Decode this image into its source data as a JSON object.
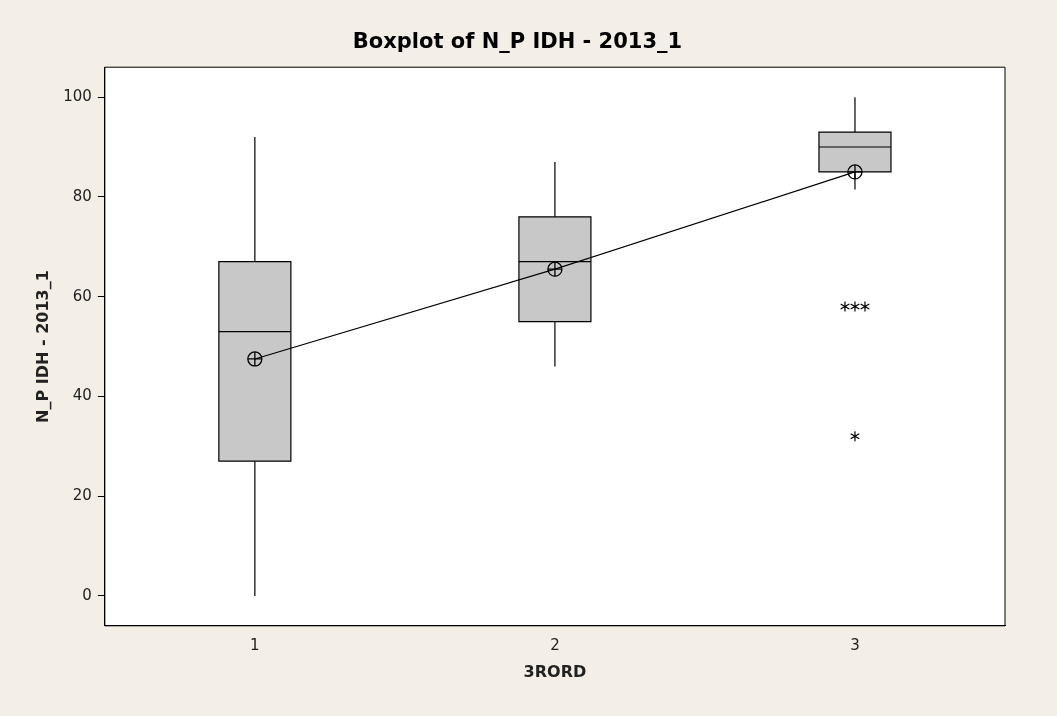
{
  "chart_data": {
    "type": "box",
    "title": "Boxplot of N_P IDH - 2013_1",
    "xlabel": "3RORD",
    "ylabel": "N_P IDH - 2013_1",
    "categories": [
      "1",
      "2",
      "3"
    ],
    "color": "#c8c8c8",
    "boxes": [
      {
        "low": 0,
        "q1": 27,
        "median": 53,
        "q3": 67,
        "high": 92,
        "mean": 47.5
      },
      {
        "low": 46,
        "q1": 55,
        "median": 67,
        "q3": 76,
        "high": 87,
        "mean": 65.5
      },
      {
        "low": 81.5,
        "q1": 85,
        "median": 90,
        "q3": 93,
        "high": 100,
        "mean": 85,
        "outliers": [
          58,
          58,
          58,
          32
        ]
      }
    ],
    "series": [
      {
        "type": "line",
        "color": "#000000",
        "values": [
          47.5,
          65.5,
          85
        ]
      }
    ],
    "ylim": [
      -6,
      106
    ],
    "yticks": [
      0,
      20,
      40,
      60,
      80,
      100
    ],
    "grid": false,
    "legend": false
  }
}
